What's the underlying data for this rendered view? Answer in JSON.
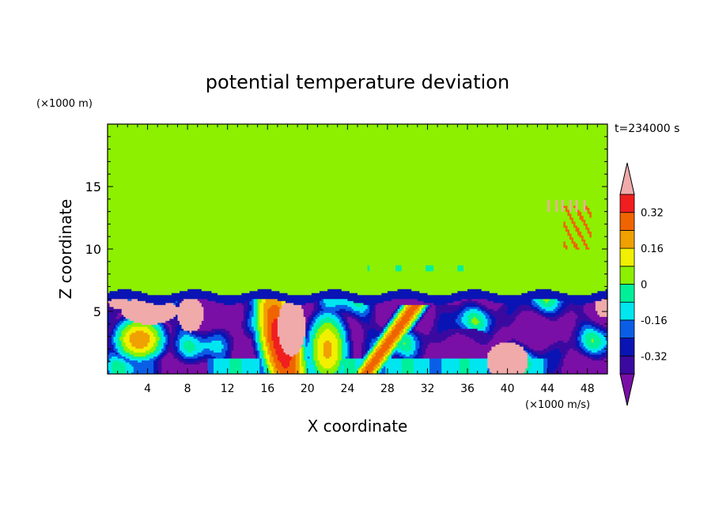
{
  "chart_data": {
    "type": "heatmap",
    "title": "potential temperature deviation",
    "xlabel": "X coordinate",
    "ylabel": "Z coordinate",
    "x_unit": "(×1000 m/s)",
    "y_unit": "(×1000 m)",
    "time_label": "t=234000 s",
    "xlim": [
      0,
      50
    ],
    "ylim": [
      0,
      20
    ],
    "x_ticks": [
      4,
      8,
      12,
      16,
      20,
      24,
      28,
      32,
      36,
      40,
      44,
      48
    ],
    "y_ticks": [
      5,
      10,
      15
    ],
    "colorbar": {
      "levels": [
        -0.4,
        -0.32,
        -0.24,
        -0.16,
        -0.08,
        0,
        0.08,
        0.16,
        0.24,
        0.32,
        0.4
      ],
      "tick_labels": [
        "-0.32",
        "-0.16",
        "0",
        "0.16",
        "0.32"
      ],
      "tick_values": [
        -0.32,
        -0.16,
        0,
        0.16,
        0.32
      ],
      "colors": [
        "#7a0fa6",
        "#3a0aa0",
        "#0a14b4",
        "#0a5ee6",
        "#00e6f0",
        "#00f09a",
        "#8cf000",
        "#f0f000",
        "#f0a000",
        "#f06400",
        "#f01e1e",
        "#f0aaaa"
      ]
    },
    "regions": [
      {
        "note": "upper layer, x 0-50, z 6.5-20",
        "value": 0.02
      },
      {
        "note": "broad band x 19-37, z 6.5-18",
        "value": 0.06
      },
      {
        "note": "band x 39-49, z 6.5-16",
        "value": 0.06
      },
      {
        "note": "interface layer, z 6-6.6",
        "value": -0.3
      },
      {
        "note": "lower layer, z 0-6",
        "value": -0.38
      },
      {
        "note": "warm plume x 14-20, z 0-6",
        "value": 0.25
      },
      {
        "note": "warm blob x 1-6, z 4-6.5",
        "value": 0.42
      },
      {
        "note": "warm blob x 38-42, z 0-2.5",
        "value": 0.42
      }
    ]
  }
}
